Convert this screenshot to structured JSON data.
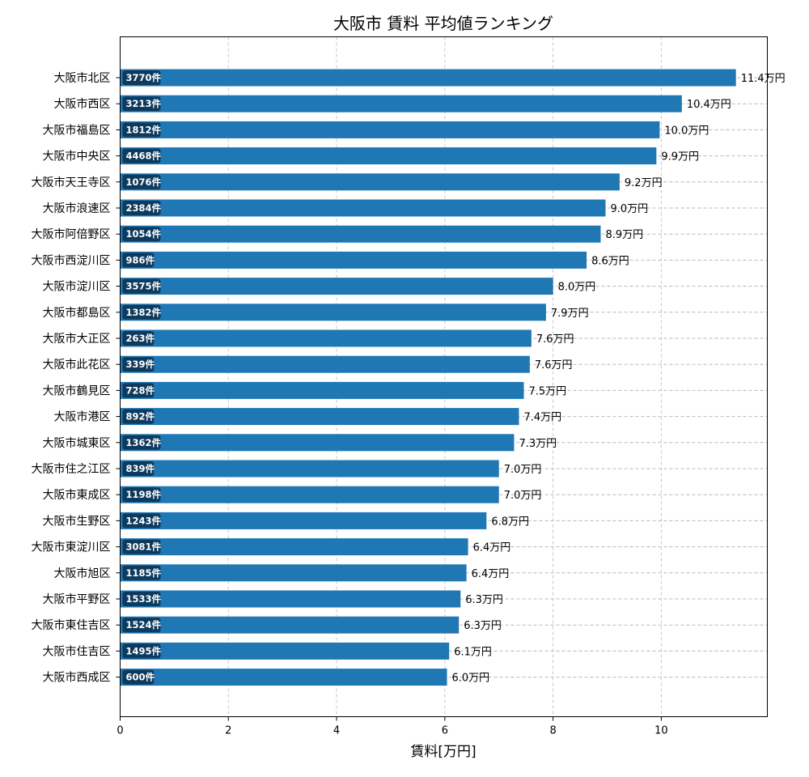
{
  "chart_data": {
    "type": "bar",
    "orientation": "horizontal",
    "title": "大阪市 賃料 平均値ランキング",
    "xlabel": "賃料[万円]",
    "ylabel": "",
    "xlim": [
      0,
      11.96
    ],
    "xticks": [
      "0",
      "2",
      "4",
      "6",
      "8",
      "10"
    ],
    "grid": true,
    "bar_color": "#1f77b4",
    "badge_color": "#0e3a5e",
    "categories": [
      "大阪市北区",
      "大阪市西区",
      "大阪市福島区",
      "大阪市中央区",
      "大阪市天王寺区",
      "大阪市浪速区",
      "大阪市阿倍野区",
      "大阪市西淀川区",
      "大阪市淀川区",
      "大阪市都島区",
      "大阪市大正区",
      "大阪市此花区",
      "大阪市鶴見区",
      "大阪市港区",
      "大阪市城東区",
      "大阪市住之江区",
      "大阪市東成区",
      "大阪市生野区",
      "大阪市東淀川区",
      "大阪市旭区",
      "大阪市平野区",
      "大阪市東住吉区",
      "大阪市住吉区",
      "大阪市西成区"
    ],
    "values": [
      11.38,
      10.38,
      9.97,
      9.91,
      9.23,
      8.97,
      8.88,
      8.62,
      8.0,
      7.87,
      7.6,
      7.57,
      7.46,
      7.37,
      7.28,
      7.0,
      7.0,
      6.77,
      6.43,
      6.4,
      6.29,
      6.26,
      6.08,
      6.04
    ],
    "value_labels": [
      "11.4万円",
      "10.4万円",
      "10.0万円",
      "9.9万円",
      "9.2万円",
      "9.0万円",
      "8.9万円",
      "8.6万円",
      "8.0万円",
      "7.9万円",
      "7.6万円",
      "7.6万円",
      "7.5万円",
      "7.4万円",
      "7.3万円",
      "7.0万円",
      "7.0万円",
      "6.8万円",
      "6.4万円",
      "6.4万円",
      "6.3万円",
      "6.3万円",
      "6.1万円",
      "6.0万円"
    ],
    "counts": [
      "3770件",
      "3213件",
      "1812件",
      "4468件",
      "1076件",
      "2384件",
      "1054件",
      "986件",
      "3575件",
      "1382件",
      "263件",
      "339件",
      "728件",
      "892件",
      "1362件",
      "839件",
      "1198件",
      "1243件",
      "3081件",
      "1185件",
      "1533件",
      "1524件",
      "1495件",
      "600件"
    ]
  }
}
